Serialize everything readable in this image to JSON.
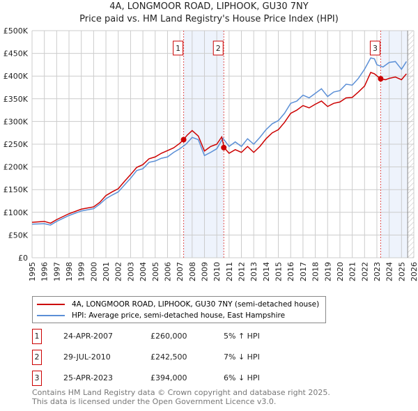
{
  "chart_data": {
    "type": "line",
    "title": "4A, LONGMOOR ROAD, LIPHOOK, GU30 7NY",
    "subtitle": "Price paid vs. HM Land Registry's House Price Index (HPI)",
    "xlim": [
      1995,
      2026
    ],
    "ylim": [
      0,
      500000
    ],
    "x_ticks": [
      "1995",
      "1996",
      "1997",
      "1998",
      "1999",
      "2000",
      "2001",
      "2002",
      "2003",
      "2004",
      "2005",
      "2006",
      "2007",
      "2008",
      "2009",
      "2010",
      "2011",
      "2012",
      "2013",
      "2014",
      "2015",
      "2016",
      "2017",
      "2018",
      "2019",
      "2020",
      "2021",
      "2022",
      "2023",
      "2024",
      "2025",
      "2026"
    ],
    "y_ticks": [
      {
        "v": 0,
        "l": "£0"
      },
      {
        "v": 50000,
        "l": "£50K"
      },
      {
        "v": 100000,
        "l": "£100K"
      },
      {
        "v": 150000,
        "l": "£150K"
      },
      {
        "v": 200000,
        "l": "£200K"
      },
      {
        "v": 250000,
        "l": "£250K"
      },
      {
        "v": 300000,
        "l": "£300K"
      },
      {
        "v": 350000,
        "l": "£350K"
      },
      {
        "v": 400000,
        "l": "£400K"
      },
      {
        "v": 450000,
        "l": "£450K"
      },
      {
        "v": 500000,
        "l": "£500K"
      }
    ],
    "grid": true,
    "series": [
      {
        "name": "4A, LONGMOOR ROAD, LIPHOOK, GU30 7NY (semi-detached house)",
        "color": "#cc0000",
        "x": [
          1995,
          1996,
          1996.5,
          1997,
          1998,
          1999,
          2000,
          2000.5,
          2001,
          2001.5,
          2002,
          2002.5,
          2003,
          2003.5,
          2004,
          2004.5,
          2005,
          2005.5,
          2006,
          2006.5,
          2007,
          2007.3,
          2007.6,
          2008,
          2008.5,
          2009,
          2009.5,
          2010,
          2010.4,
          2010.6,
          2011,
          2011.5,
          2012,
          2012.5,
          2013,
          2013.5,
          2014,
          2014.5,
          2015,
          2015.5,
          2016,
          2016.5,
          2017,
          2017.5,
          2018,
          2018.5,
          2019,
          2019.5,
          2020,
          2020.5,
          2021,
          2021.5,
          2022,
          2022.5,
          2022.8,
          2023.3,
          2023.7,
          2024,
          2024.5,
          2025,
          2025.4
        ],
        "y": [
          78000,
          80000,
          76000,
          84000,
          97000,
          107000,
          112000,
          122000,
          137000,
          145000,
          152000,
          168000,
          183000,
          199000,
          205000,
          218000,
          222000,
          230000,
          236000,
          242000,
          252000,
          260000,
          270000,
          280000,
          268000,
          235000,
          245000,
          250000,
          266000,
          242500,
          230000,
          238000,
          232000,
          245000,
          232000,
          245000,
          262000,
          275000,
          282000,
          298000,
          318000,
          325000,
          335000,
          330000,
          338000,
          345000,
          333000,
          340000,
          343000,
          352000,
          353000,
          365000,
          378000,
          408000,
          405000,
          394000,
          392000,
          395000,
          398000,
          392000,
          405000
        ]
      },
      {
        "name": "HPI: Average price, semi-detached house, East Hampshire",
        "color": "#5b8fd6",
        "x": [
          1995,
          1996,
          1996.5,
          1997,
          1998,
          1999,
          2000,
          2000.5,
          2001,
          2001.5,
          2002,
          2002.5,
          2003,
          2003.5,
          2004,
          2004.5,
          2005,
          2005.5,
          2006,
          2006.5,
          2007,
          2007.5,
          2008,
          2008.5,
          2009,
          2009.5,
          2010,
          2010.5,
          2011,
          2011.5,
          2012,
          2012.5,
          2013,
          2013.5,
          2014,
          2014.5,
          2015,
          2015.5,
          2016,
          2016.5,
          2017,
          2017.5,
          2018,
          2018.5,
          2019,
          2019.5,
          2020,
          2020.5,
          2021,
          2021.5,
          2022,
          2022.5,
          2022.8,
          2023,
          2023.5,
          2024,
          2024.5,
          2025,
          2025.4
        ],
        "y": [
          74000,
          75000,
          72000,
          80000,
          93000,
          103000,
          108000,
          118000,
          130000,
          138000,
          145000,
          160000,
          175000,
          192000,
          196000,
          210000,
          213000,
          219000,
          222000,
          232000,
          240000,
          250000,
          265000,
          260000,
          225000,
          232000,
          240000,
          263000,
          245000,
          255000,
          245000,
          262000,
          250000,
          265000,
          282000,
          295000,
          302000,
          318000,
          340000,
          345000,
          358000,
          352000,
          362000,
          372000,
          355000,
          365000,
          368000,
          382000,
          380000,
          395000,
          415000,
          440000,
          438000,
          425000,
          420000,
          430000,
          432000,
          415000,
          432000
        ]
      }
    ],
    "sales": [
      {
        "label": "1",
        "date": "24-APR-2007",
        "x": 2007.31,
        "price": "£260,000",
        "value": 260000,
        "hpi": "5% ↑ HPI"
      },
      {
        "label": "2",
        "date": "29-JUL-2010",
        "x": 2010.57,
        "price": "£242,500",
        "value": 242500,
        "hpi": "7% ↓ HPI"
      },
      {
        "label": "3",
        "date": "25-APR-2023",
        "x": 2023.31,
        "price": "£394,000",
        "value": 394000,
        "hpi": "6% ↓ HPI"
      }
    ],
    "shaded_ranges": [
      [
        2007.31,
        2010.57
      ],
      [
        2023.31,
        2025.5
      ]
    ],
    "forecast_hatch_from": 2025.5
  },
  "legend": {
    "red": "4A, LONGMOOR ROAD, LIPHOOK, GU30 7NY (semi-detached house)",
    "blue": "HPI: Average price, semi-detached house, East Hampshire"
  },
  "footer": {
    "line1": "Contains HM Land Registry data © Crown copyright and database right 2025.",
    "line2": "This data is licensed under the Open Government Licence v3.0."
  }
}
